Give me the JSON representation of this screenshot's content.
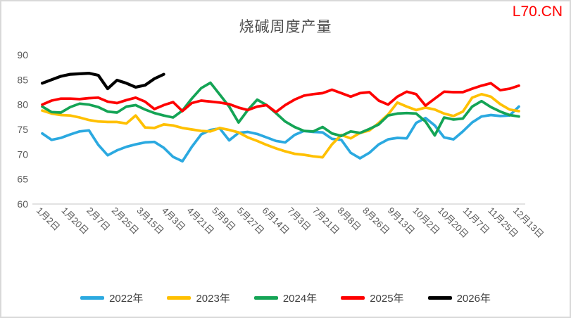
{
  "header": {
    "watermark": "L70.CN"
  },
  "chart_data": {
    "type": "line",
    "title": "烧碱周度产量",
    "legend_position": "bottom",
    "grid": "off",
    "y_axis": {
      "min": 60,
      "max": 90,
      "tick_step": 5,
      "ticks": [
        90,
        85,
        80,
        75,
        70,
        65,
        60
      ]
    },
    "x_labels": [
      "1月2日",
      "1月20日",
      "2月7日",
      "2月25日",
      "3月15日",
      "4月3日",
      "4月21日",
      "5月9日",
      "5月27日",
      "6月14日",
      "7月3日",
      "7月21日",
      "8月8日",
      "8月26日",
      "9月13日",
      "10月2日",
      "10月20日",
      "11月7日",
      "11月25日",
      "12月13日"
    ],
    "x_frequency": "weekly",
    "series": [
      {
        "name": "2022年",
        "color": "#2BA9E0",
        "values": [
          74.2,
          72.9,
          73.3,
          74.0,
          74.6,
          74.8,
          71.9,
          69.8,
          70.8,
          71.5,
          72.0,
          72.4,
          72.5,
          71.3,
          69.5,
          68.6,
          71.5,
          74.0,
          74.9,
          75.2,
          72.8,
          74.3,
          74.5,
          74.1,
          73.4,
          72.7,
          72.4,
          73.9,
          74.7,
          74.5,
          74.4,
          73.1,
          72.9,
          70.3,
          69.2,
          70.3,
          72.0,
          73.0,
          73.3,
          73.2,
          76.3,
          77.3,
          75.8,
          73.4,
          73.0,
          74.6,
          76.4,
          77.6,
          77.9,
          77.7,
          77.8,
          79.6
        ]
      },
      {
        "name": "2023年",
        "color": "#FFC000",
        "values": [
          78.8,
          78.2,
          77.9,
          77.8,
          77.4,
          76.9,
          76.6,
          76.5,
          76.5,
          76.2,
          77.8,
          75.4,
          75.3,
          76.0,
          75.8,
          75.3,
          75.0,
          74.7,
          74.6,
          75.3,
          74.9,
          74.4,
          73.4,
          72.7,
          71.9,
          71.2,
          70.6,
          70.1,
          69.9,
          69.6,
          69.4,
          72.0,
          73.9,
          73.2,
          74.3,
          74.8,
          76.3,
          78.0,
          80.4,
          79.6,
          78.9,
          79.4,
          79.0,
          78.2,
          77.7,
          78.6,
          81.4,
          82.1,
          81.6,
          80.1,
          79.0,
          78.7
        ]
      },
      {
        "name": "2024年",
        "color": "#14A455",
        "values": [
          79.6,
          78.5,
          78.4,
          79.5,
          80.2,
          80.0,
          79.5,
          78.6,
          78.4,
          79.6,
          79.9,
          79.0,
          78.3,
          77.8,
          77.4,
          78.8,
          81.2,
          83.3,
          84.4,
          82.0,
          79.6,
          76.4,
          78.9,
          81.0,
          79.9,
          78.3,
          76.6,
          75.5,
          74.7,
          74.6,
          75.5,
          74.2,
          73.7,
          74.6,
          74.3,
          75.1,
          76.0,
          77.8,
          78.2,
          78.3,
          78.2,
          76.6,
          73.8,
          77.4,
          77.0,
          77.2,
          79.6,
          80.7,
          79.5,
          78.6,
          77.9,
          77.6
        ]
      },
      {
        "name": "2025年",
        "color": "#FE0000",
        "values": [
          80.0,
          80.8,
          81.2,
          81.2,
          81.1,
          81.3,
          81.4,
          80.6,
          80.3,
          80.9,
          81.4,
          80.6,
          79.1,
          79.9,
          80.5,
          78.7,
          80.3,
          80.8,
          80.6,
          80.4,
          80.1,
          79.4,
          78.9,
          79.6,
          79.9,
          78.5,
          79.9,
          81.0,
          81.8,
          82.1,
          82.3,
          83.0,
          82.3,
          81.6,
          82.3,
          82.5,
          80.8,
          80.0,
          81.6,
          82.6,
          82.1,
          79.8,
          81.2,
          82.6,
          82.5,
          82.5,
          83.2,
          83.8,
          84.3,
          82.9,
          83.2,
          83.8
        ]
      },
      {
        "name": "2026年",
        "color": "#000000",
        "values": [
          84.3,
          85.0,
          85.7,
          86.1,
          86.2,
          86.3,
          85.9,
          83.2,
          84.9,
          84.3,
          83.5,
          83.9,
          85.2,
          86.1
        ]
      }
    ]
  }
}
